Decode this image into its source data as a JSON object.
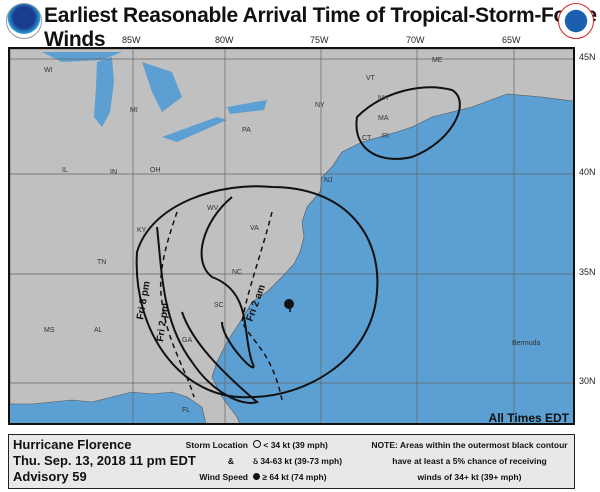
{
  "header": {
    "title": "Earliest Reasonable Arrival Time of Tropical-Storm-Force Winds",
    "left_logo": "NOAA",
    "right_logo": "National Weather Service"
  },
  "grid": {
    "lon_labels": [
      "85W",
      "80W",
      "75W",
      "70W",
      "65W"
    ],
    "lat_labels": [
      "45N",
      "40N",
      "35N",
      "30N"
    ]
  },
  "map": {
    "state_labels": [
      "WI",
      "MI",
      "IL",
      "IN",
      "OH",
      "PA",
      "NY",
      "VT",
      "NH",
      "MA",
      "CT",
      "RI",
      "NJ",
      "KY",
      "WV",
      "VA",
      "TN",
      "NC",
      "SC",
      "GA",
      "MS",
      "AL",
      "FL",
      "ME"
    ],
    "place_labels": [
      "Bermuda"
    ],
    "contour_labels": [
      "Fri 8 pm",
      "Fri 2 pm",
      "Fri 2 am"
    ],
    "times_note": "All Times EDT",
    "colors": {
      "ocean": "#5b9fd3",
      "land": "#c0c0c0"
    }
  },
  "legend": {
    "storm": "Hurricane Florence",
    "date": "Thu. Sep. 13, 2018  11 pm EDT",
    "advisory": "Advisory 59",
    "key_title_1": "Storm Location",
    "key_title_2": "&",
    "key_title_3": "Wind Speed",
    "key_items": [
      "< 34 kt (39 mph)",
      "34-63 kt (39-73 mph)",
      "≥ 64 kt (74 mph)"
    ],
    "note_1": "NOTE: Areas within the outermost black contour",
    "note_2": "have at least a 5% chance of receiving",
    "note_3": "winds of 34+ kt (39+ mph)"
  }
}
